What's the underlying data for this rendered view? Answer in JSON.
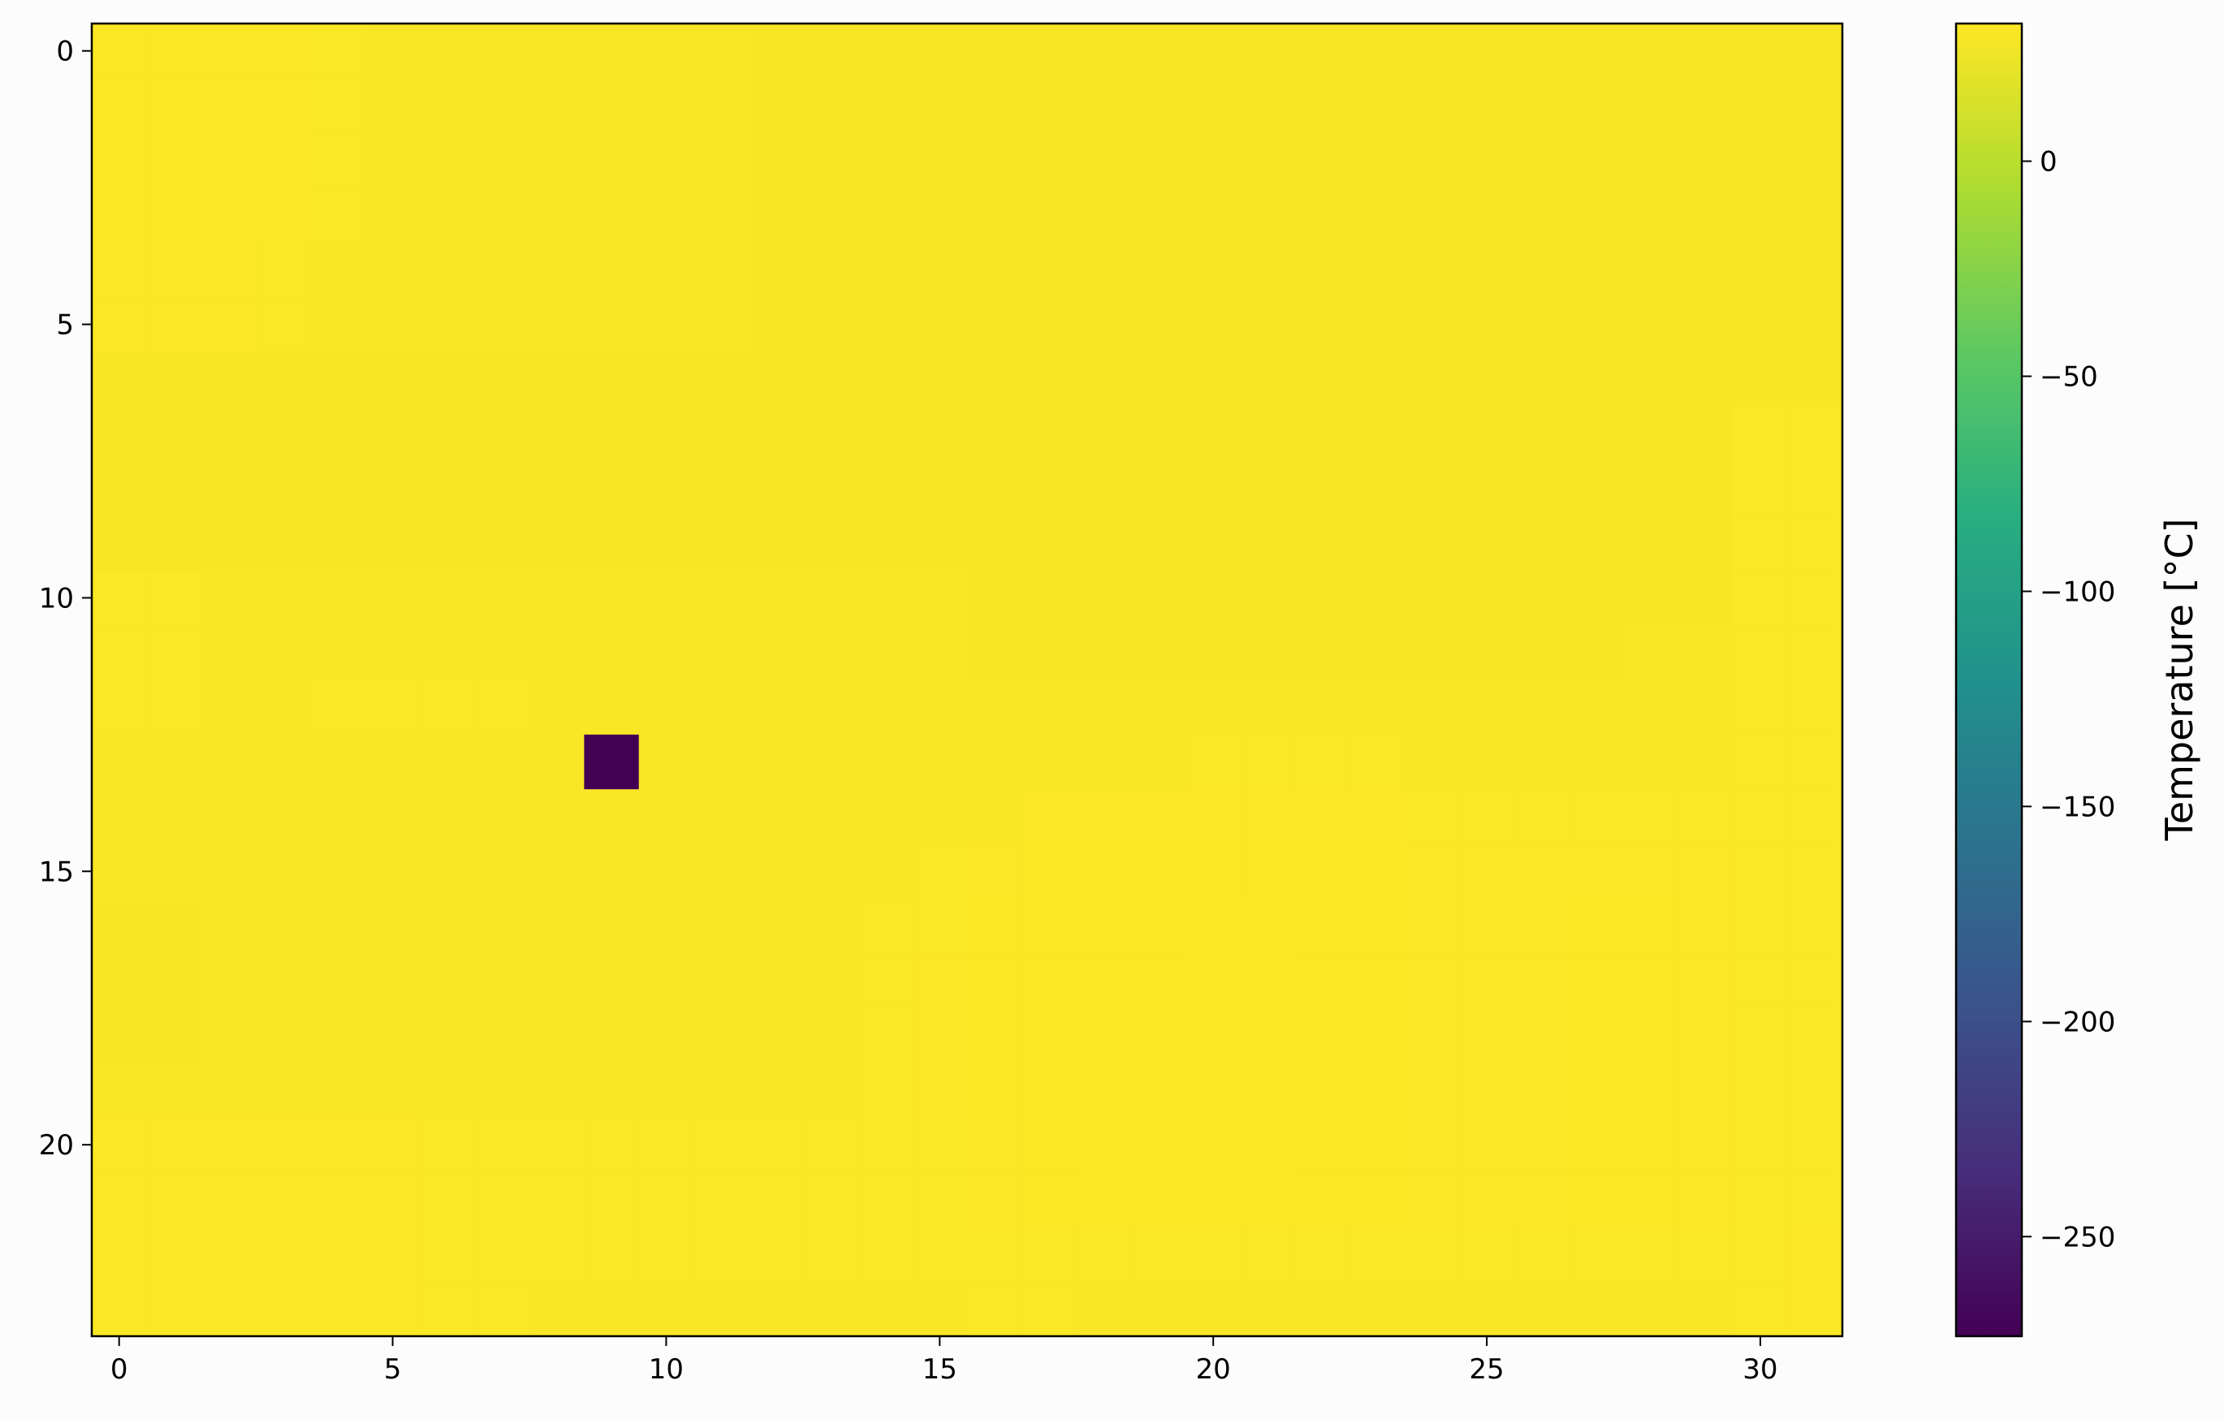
{
  "chart_data": {
    "type": "heatmap",
    "title": "",
    "xlabel": "",
    "ylabel": "",
    "colorbar_label": "Temperature [°C]",
    "colormap": "viridis",
    "n_cols": 32,
    "n_rows": 24,
    "x_range": [
      -0.5,
      31.5
    ],
    "y_range": [
      -0.5,
      23.5
    ],
    "x_ticks": [
      0,
      5,
      10,
      15,
      20,
      25,
      30
    ],
    "y_ticks": [
      0,
      5,
      10,
      15,
      20
    ],
    "color_range": [
      -273.15,
      32
    ],
    "colorbar_ticks": [
      0,
      -50,
      -100,
      -150,
      -200,
      -250
    ],
    "colorbar_tick_labels": [
      "0",
      "−50",
      "−100",
      "−150",
      "−200",
      "−250"
    ],
    "values": [
      [
        31.5,
        31.5,
        31,
        31,
        30.5,
        30,
        30,
        30,
        30,
        30,
        30,
        30,
        29.5,
        29.5,
        29.5,
        29.5,
        29.5,
        29.5,
        29.5,
        29.5,
        29,
        29,
        29,
        29,
        29,
        29,
        29,
        29,
        29,
        29,
        29,
        29
      ],
      [
        31.5,
        31.5,
        31,
        31,
        30.5,
        30,
        30,
        30,
        30,
        30,
        30,
        30,
        29.5,
        29.5,
        29.5,
        29.5,
        29.5,
        29.5,
        29.5,
        29.5,
        29,
        29,
        29,
        29,
        29,
        29,
        29,
        29,
        29,
        29,
        29,
        29
      ],
      [
        31.5,
        31.5,
        31,
        31,
        30.5,
        30,
        30,
        30,
        30,
        30,
        30,
        30,
        29.5,
        29.5,
        29.5,
        29.5,
        29.5,
        29.5,
        29.5,
        29.5,
        29,
        29,
        29,
        29,
        29,
        29,
        29,
        29,
        29,
        29,
        29,
        29
      ],
      [
        31.5,
        31.5,
        31,
        31,
        30.5,
        30,
        30,
        30,
        30,
        30,
        30,
        30,
        29.5,
        29.5,
        29.5,
        29.5,
        29.5,
        29.5,
        29.5,
        29.5,
        29,
        29,
        29,
        29,
        29,
        29,
        29,
        29,
        29,
        29,
        29,
        29
      ],
      [
        31,
        31,
        31,
        30.5,
        30,
        30,
        30,
        30,
        30,
        30,
        30,
        30,
        29.5,
        29.5,
        29.5,
        29.5,
        29.5,
        29.5,
        29.5,
        29.5,
        29.5,
        29.5,
        29.5,
        29.5,
        29.5,
        29.5,
        29.5,
        29.5,
        29.5,
        29.5,
        29.5,
        29.5
      ],
      [
        31,
        31,
        31,
        30.5,
        30,
        30,
        30,
        30,
        30,
        30,
        30,
        30,
        29.5,
        29.5,
        29.5,
        29.5,
        29.5,
        29.5,
        29.5,
        29.5,
        29.5,
        29.5,
        29.5,
        29.5,
        29.5,
        29.5,
        29.5,
        29.5,
        29.5,
        29.5,
        29.5,
        29.5
      ],
      [
        29.5,
        29.5,
        29.5,
        29.5,
        29.5,
        29.5,
        29.5,
        29.5,
        29.5,
        29.5,
        29.5,
        29.5,
        29.5,
        29.5,
        29.5,
        29.5,
        29.5,
        29.5,
        29.5,
        29.5,
        29.5,
        29.5,
        29.5,
        29.5,
        29.5,
        29.5,
        29.5,
        29.5,
        29.5,
        29.5,
        29.5,
        29.5
      ],
      [
        29.5,
        29.5,
        29.5,
        29.5,
        29.5,
        29.5,
        29.5,
        29.5,
        29.5,
        29.5,
        29.5,
        29.5,
        29.5,
        29.5,
        29.5,
        29.5,
        29.5,
        29.5,
        29.5,
        29.5,
        29.5,
        29.5,
        29.5,
        29.5,
        29.5,
        29.5,
        29.5,
        29.5,
        29.5,
        29.5,
        30.5,
        30.5
      ],
      [
        29.5,
        29.5,
        29.5,
        29.5,
        29.5,
        29.5,
        29.5,
        29.5,
        29.5,
        29.5,
        29.5,
        29.5,
        29.5,
        29.5,
        29.5,
        29.5,
        29.5,
        29.5,
        29.5,
        29.5,
        29.5,
        29.5,
        29.5,
        29.5,
        29.5,
        29.5,
        29.5,
        29.5,
        29.5,
        29.5,
        30.5,
        30.5
      ],
      [
        29.5,
        29.5,
        29.5,
        29.5,
        29.5,
        29.5,
        29.5,
        29.5,
        29.5,
        29.5,
        29.5,
        29.5,
        29.5,
        29.5,
        29.5,
        29.5,
        29.5,
        29.5,
        29.5,
        29.5,
        29.5,
        29.5,
        29.5,
        29.5,
        29.5,
        29.5,
        29.5,
        29.5,
        29.5,
        29.5,
        30.5,
        30.5
      ],
      [
        30.5,
        30.5,
        30,
        30,
        30,
        30,
        30,
        30,
        30,
        30,
        30,
        30,
        30,
        30,
        30,
        30,
        29.5,
        29.5,
        29.5,
        29.5,
        29.5,
        29.5,
        29.5,
        29.5,
        29.5,
        29.5,
        29.5,
        29.5,
        29.5,
        29.5,
        30.5,
        30.5
      ],
      [
        30.5,
        30.5,
        30,
        30,
        30,
        30,
        30,
        30,
        30,
        30,
        30,
        30,
        30,
        30,
        30,
        30,
        29.5,
        29.5,
        29.5,
        29.5,
        29.5,
        29.5,
        29.5,
        29.5,
        29.5,
        29.5,
        29.5,
        29.5,
        30,
        30,
        30.5,
        30.5
      ],
      [
        30.5,
        30.5,
        30,
        30,
        30.5,
        30.5,
        30.5,
        30.5,
        30,
        30,
        30,
        30,
        30,
        30,
        30,
        30,
        30,
        30,
        30,
        30,
        30,
        30,
        30,
        30,
        30,
        30,
        30,
        30,
        30,
        30,
        30.5,
        30.5
      ],
      [
        30,
        30,
        30,
        30,
        30,
        30,
        30,
        30,
        30,
        -273.15,
        30,
        30,
        30,
        30,
        30,
        30,
        30,
        30,
        30,
        30,
        30.5,
        30.5,
        30.5,
        30.5,
        30,
        30,
        30,
        30,
        30,
        30,
        30.5,
        30.5
      ],
      [
        30,
        30,
        30,
        30,
        30,
        30,
        30,
        30,
        30,
        30,
        30,
        30,
        30,
        30,
        30,
        30,
        30,
        31,
        31,
        31,
        31,
        31,
        31,
        31,
        30.5,
        30.5,
        30.5,
        30.5,
        30.5,
        30.5,
        30.5,
        30.5
      ],
      [
        30,
        30,
        30,
        30,
        30,
        30,
        30,
        30,
        30,
        30,
        30,
        30,
        30,
        30,
        30,
        30.5,
        31,
        31.5,
        31.5,
        31.5,
        31.5,
        31.5,
        31.5,
        31.5,
        31,
        31,
        31,
        31,
        31,
        31,
        30.5,
        30.5
      ],
      [
        29.5,
        29.5,
        30,
        30,
        30,
        30,
        30,
        30,
        30,
        30,
        30,
        30,
        30,
        30,
        30.5,
        30.5,
        31.5,
        31.5,
        31.5,
        31.5,
        32,
        32,
        31.5,
        31.5,
        31,
        31,
        31,
        31.5,
        31.5,
        31,
        30.5,
        30.5
      ],
      [
        29.5,
        29.5,
        30,
        30,
        30,
        30,
        30,
        30,
        30,
        30,
        30,
        30,
        30,
        30,
        30.5,
        31,
        31.5,
        31.5,
        31.5,
        31.5,
        32,
        32,
        31.5,
        31.5,
        31,
        31,
        31,
        31.5,
        31.5,
        31,
        30.5,
        30.5
      ],
      [
        29.5,
        29.5,
        30,
        30,
        30,
        30,
        30,
        30,
        30,
        30,
        30,
        30,
        30,
        30,
        30.5,
        31,
        31.5,
        31.5,
        32,
        32,
        32,
        32,
        31.5,
        31.5,
        31,
        31,
        31,
        31.5,
        31.5,
        31,
        30.5,
        30.5
      ],
      [
        30,
        30,
        30,
        30,
        30,
        30,
        30,
        30,
        30,
        30,
        30,
        30,
        30,
        30,
        30.5,
        31,
        31.5,
        31.5,
        32,
        32,
        32,
        32,
        31.5,
        31.5,
        31,
        31,
        31,
        31.5,
        31.5,
        31,
        30.5,
        30.5
      ],
      [
        31,
        31,
        31,
        31,
        31,
        31,
        30.5,
        30.5,
        30.5,
        30.5,
        30.5,
        30.5,
        30.5,
        30.5,
        30.5,
        30.5,
        31,
        31.5,
        32,
        32,
        32,
        32,
        31.5,
        31.5,
        31,
        31,
        31,
        31.5,
        31.5,
        31,
        30.5,
        30.5
      ],
      [
        31,
        31,
        31,
        31,
        31,
        31,
        30.5,
        30.5,
        30.5,
        30.5,
        30.5,
        30.5,
        30.5,
        30.5,
        30.5,
        30.5,
        31,
        31.5,
        31.5,
        31.5,
        32,
        32,
        31.5,
        31.5,
        31,
        31,
        31,
        31.5,
        31.5,
        31,
        30.5,
        30.5
      ],
      [
        31,
        31,
        31,
        31,
        31,
        31,
        30.5,
        30.5,
        30.5,
        30.5,
        30.5,
        30.5,
        30.5,
        30.5,
        30.5,
        30.5,
        30.5,
        30.5,
        30.5,
        30.5,
        30.5,
        30.5,
        30.5,
        30.5,
        30.5,
        30.5,
        30.5,
        30.5,
        30.5,
        30.5,
        30.5,
        31
      ],
      [
        31,
        31,
        31,
        31,
        31,
        31,
        30.5,
        30.5,
        30,
        30,
        30,
        30,
        30,
        30,
        30,
        30,
        30.5,
        30.5,
        30,
        30,
        30,
        30,
        30,
        30,
        30,
        30,
        30,
        30,
        30,
        30,
        30.5,
        31
      ]
    ]
  }
}
